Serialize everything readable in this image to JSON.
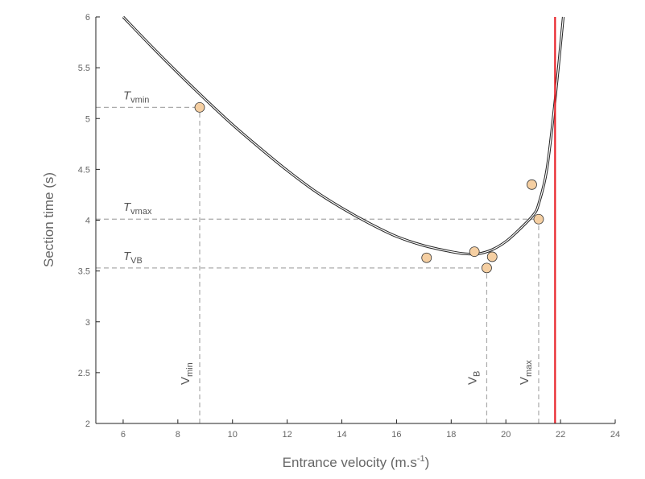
{
  "chart_data": {
    "type": "scatter",
    "xlabel": {
      "main": "Entrance velocity (m.s",
      "sup": "-1",
      "end": ")"
    },
    "ylabel": "Section time (s)",
    "xlim": [
      5,
      24
    ],
    "ylim": [
      2,
      6
    ],
    "xticks": [
      6,
      8,
      10,
      12,
      14,
      16,
      18,
      20,
      22,
      24
    ],
    "yticks": [
      2,
      2.5,
      3,
      3.5,
      4,
      4.5,
      5,
      5.5,
      6
    ],
    "grid": false,
    "points": [
      {
        "x": 8.8,
        "y": 5.11
      },
      {
        "x": 17.1,
        "y": 3.63
      },
      {
        "x": 18.85,
        "y": 3.69
      },
      {
        "x": 19.3,
        "y": 3.53
      },
      {
        "x": 19.5,
        "y": 3.64
      },
      {
        "x": 20.95,
        "y": 4.35
      },
      {
        "x": 21.2,
        "y": 4.01
      }
    ],
    "curve": {
      "x": [
        6,
        7,
        8,
        9,
        10,
        11,
        12,
        13,
        14,
        15,
        16,
        17,
        18,
        18.5,
        19,
        19.5,
        20,
        20.5,
        21,
        21.2,
        21.5,
        21.8,
        22.1
      ],
      "y": [
        6.0,
        5.72,
        5.45,
        5.19,
        4.94,
        4.71,
        4.49,
        4.29,
        4.12,
        3.97,
        3.84,
        3.75,
        3.69,
        3.67,
        3.67,
        3.71,
        3.79,
        3.91,
        4.05,
        4.16,
        4.5,
        5.18,
        6.0
      ]
    },
    "vertical_line": {
      "x": 21.8,
      "color": "#e8232a"
    },
    "reference_lines": {
      "horizontal": [
        {
          "y": 5.11,
          "x_end": 8.8,
          "label": "T",
          "sub": "vmin"
        },
        {
          "y": 4.01,
          "x_end": 21.2,
          "label": "T",
          "sub": "vmax"
        },
        {
          "y": 3.53,
          "x_end": 19.3,
          "label": "T",
          "sub": "VB"
        }
      ],
      "vertical": [
        {
          "x": 8.8,
          "y_end": 5.11,
          "label": "V",
          "sub": "min"
        },
        {
          "x": 19.3,
          "y_end": 3.53,
          "label": "V",
          "sub": "B"
        },
        {
          "x": 21.2,
          "y_end": 4.01,
          "label": "V",
          "sub": "max"
        }
      ]
    },
    "colors": {
      "marker_fill": "#f5cfa2",
      "marker_stroke": "#333333",
      "curve": "#222222",
      "reference": "#aaaaaa",
      "axis": "#222222"
    }
  }
}
